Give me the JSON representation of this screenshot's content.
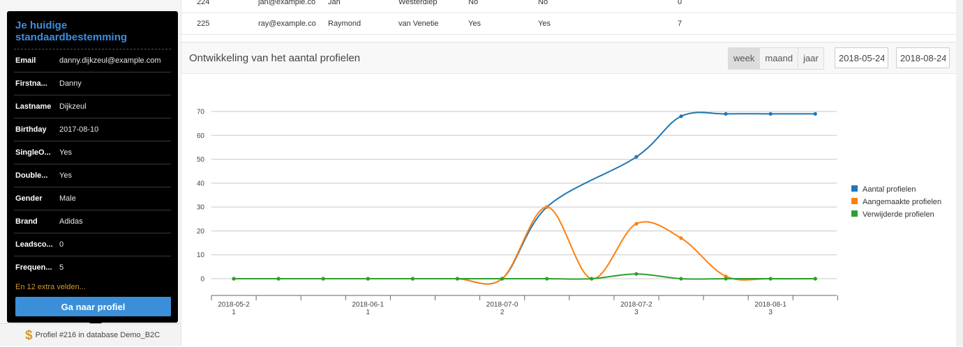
{
  "popup": {
    "title": "Je huidige standaardbestemming",
    "fields": [
      {
        "label": "Email",
        "value": "danny.dijkzeul@example.com"
      },
      {
        "label": "Firstna...",
        "value": "Danny"
      },
      {
        "label": "Lastname",
        "value": "Dijkzeul"
      },
      {
        "label": "Birthday",
        "value": "2017-08-10"
      },
      {
        "label": "SingleO...",
        "value": "Yes"
      },
      {
        "label": "Double...",
        "value": "Yes"
      },
      {
        "label": "Gender",
        "value": "Male"
      },
      {
        "label": "Brand",
        "value": "Adidas"
      },
      {
        "label": "Leadsco...",
        "value": "0"
      },
      {
        "label": "Frequen...",
        "value": "5"
      }
    ],
    "extra_fields": "En 12 extra velden...",
    "button_label": "Ga naar profiel"
  },
  "footer": {
    "text": "Profiel #216 in database Demo_B2C"
  },
  "table": {
    "rows": [
      [
        "224",
        "jan@example.co",
        "Jan",
        "Westerdiep",
        "No",
        "No",
        "0"
      ],
      [
        "225",
        "ray@example.co",
        "Raymond",
        "van Venetie",
        "Yes",
        "Yes",
        "7"
      ]
    ]
  },
  "chart_header": {
    "title": "Ontwikkeling van het aantal profielen",
    "periods": [
      "week",
      "maand",
      "jaar"
    ],
    "active_period": "week",
    "date_from": "2018-05-24",
    "date_to": "2018-08-24"
  },
  "chart_data": {
    "type": "line",
    "x": [
      "2018-05-21",
      "2018-05-28",
      "2018-06-04",
      "2018-06-11",
      "2018-06-18",
      "2018-06-25",
      "2018-07-02",
      "2018-07-09",
      "2018-07-16",
      "2018-07-23",
      "2018-07-30",
      "2018-08-06",
      "2018-08-13",
      "2018-08-20"
    ],
    "x_tick_labels": [
      {
        "x": "2018-05-21",
        "lines": [
          "2018-05-2",
          "1"
        ]
      },
      {
        "x": "2018-06-11",
        "lines": [
          "2018-06-1",
          "1"
        ]
      },
      {
        "x": "2018-07-02",
        "lines": [
          "2018-07-0",
          "2"
        ]
      },
      {
        "x": "2018-07-23",
        "lines": [
          "2018-07-2",
          "3"
        ]
      },
      {
        "x": "2018-08-13",
        "lines": [
          "2018-08-1",
          "3"
        ]
      }
    ],
    "yticks": [
      0,
      10,
      20,
      30,
      40,
      50,
      60,
      70
    ],
    "ylim": [
      0,
      70
    ],
    "series": [
      {
        "name": "Aantal profielen",
        "color": "#1f77b4",
        "values": [
          0,
          0,
          0,
          0,
          0,
          0,
          0,
          30,
          null,
          51,
          68,
          69,
          69,
          69
        ]
      },
      {
        "name": "Aangemaakte profielen",
        "color": "#ff7f0e",
        "values": [
          0,
          0,
          0,
          0,
          0,
          0,
          0,
          30,
          0,
          23,
          17,
          1,
          0,
          0
        ]
      },
      {
        "name": "Verwijderde profielen",
        "color": "#2ca02c",
        "values": [
          0,
          0,
          0,
          0,
          0,
          0,
          0,
          0,
          0,
          2,
          0,
          0,
          0,
          0
        ]
      }
    ],
    "grid": true,
    "legend": "right"
  }
}
